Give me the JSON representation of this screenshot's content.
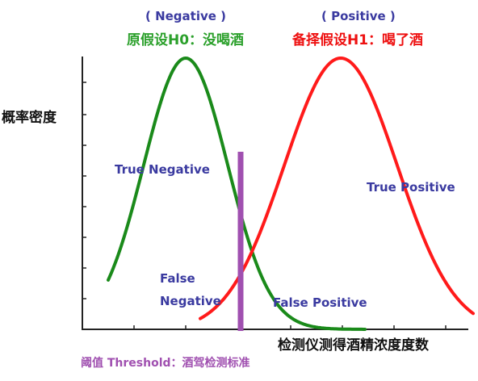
{
  "labels": {
    "neg_head": "( Negative )",
    "h0": "原假设H0：没喝酒",
    "pos_head": "( Positive )",
    "h1": "备择假设H1：喝了酒",
    "ylabel": "概率密度",
    "true_negative": "True  Negative",
    "true_positive": "True  Positive",
    "false_negative_1": "False",
    "false_negative_2": "Negative",
    "false_positive": "False Positive",
    "xlabel": "检测仪测得酒精浓度度数",
    "threshold": "阈值 Threshold：酒驾检测标准"
  },
  "colors": {
    "negative_curve": "#1a8a1a",
    "positive_curve": "#ff1a1a",
    "threshold": "#a050b0",
    "label_blue": "#3a3aa0",
    "label_green": "#2ba02b",
    "label_red": "#ee1111",
    "axis": "#222222"
  },
  "diagram": {
    "type": "two overlapping normal distributions with a threshold line",
    "negative_peak": "left",
    "positive_peak": "right"
  }
}
